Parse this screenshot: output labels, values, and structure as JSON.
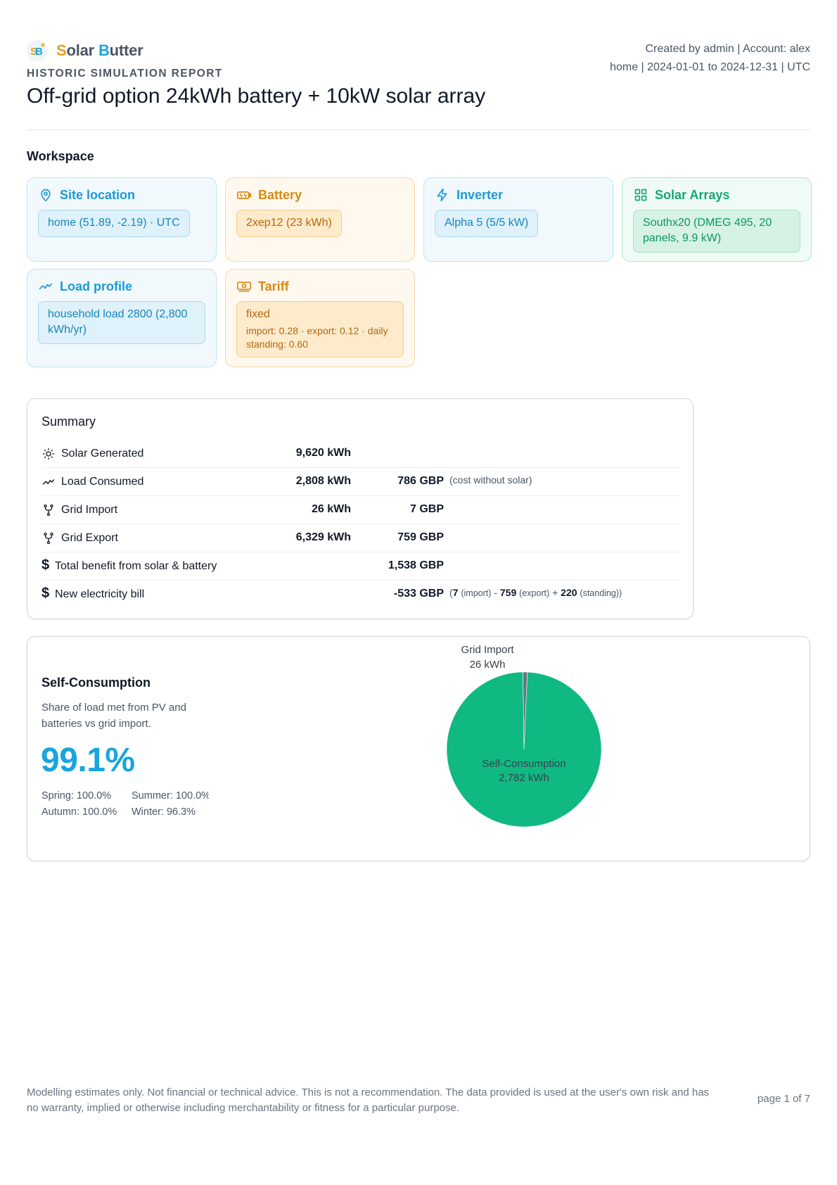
{
  "brand": {
    "first_letter": "S",
    "first_rest": "olar ",
    "second_letter": "B",
    "second_rest": "utter"
  },
  "header": {
    "kicker": "HISTORIC SIMULATION REPORT",
    "title": "Off-grid option 24kWh battery + 10kW solar array",
    "meta_line1": "Created by admin | Account: alex",
    "meta_line2": "home | 2024-01-01 to 2024-12-31 | UTC"
  },
  "workspace": {
    "title": "Workspace",
    "cards": [
      {
        "key": "site",
        "title": "Site location",
        "icon": "map-pin-icon",
        "value": "home (51.89, -2.19) · UTC"
      },
      {
        "key": "battery",
        "title": "Battery",
        "icon": "battery-icon",
        "value": "2xep12 (23 kWh)"
      },
      {
        "key": "inverter",
        "title": "Inverter",
        "icon": "lightning-icon",
        "value": "Alpha 5 (5/5 kW)"
      },
      {
        "key": "arrays",
        "title": "Solar Arrays",
        "icon": "grid-icon",
        "value": "Southx20 (DMEG 495, 20 panels, 9.9 kW)"
      },
      {
        "key": "load",
        "title": "Load profile",
        "icon": "trend-icon",
        "value": "household load 2800 (2,800 kWh/yr)"
      },
      {
        "key": "tariff",
        "title": "Tariff",
        "icon": "banknote-icon",
        "value": "fixed",
        "detail": "import: 0.28 · export: 0.12 · daily standing: 0.60"
      }
    ]
  },
  "summary": {
    "title": "Summary",
    "rows": [
      {
        "icon": "sun-icon",
        "label": "Solar Generated",
        "energy": "9,620 kWh",
        "cost": "",
        "note": ""
      },
      {
        "icon": "trend-icon",
        "label": "Load Consumed",
        "energy": "2,808 kWh",
        "cost": "786 GBP",
        "note": "(cost without solar)"
      },
      {
        "icon": "fork-icon",
        "label": "Grid Import",
        "energy": "26 kWh",
        "cost": "7 GBP",
        "note": ""
      },
      {
        "icon": "fork-icon",
        "label": "Grid Export",
        "energy": "6,329 kWh",
        "cost": "759 GBP",
        "note": ""
      },
      {
        "icon": "dollar-icon",
        "label": "Total benefit from solar & battery",
        "energy": "",
        "cost": "1,538 GBP",
        "note": ""
      },
      {
        "icon": "dollar-icon",
        "label": "New electricity bill",
        "energy": "",
        "cost": "-533 GBP"
      }
    ],
    "bill_breakdown": {
      "open": "(",
      "import_value": "7",
      "import_label": "(import)",
      "minus": "-",
      "export_value": "759",
      "export_label": "(export)",
      "plus": "+",
      "standing_value": "220",
      "standing_label": "(standing))"
    }
  },
  "self_consumption": {
    "title": "Self-Consumption",
    "description": "Share of load met from PV and batteries vs grid import.",
    "percent": "99.1%",
    "seasons": {
      "spring": "Spring: 100.0%",
      "summer": "Summer: 100.0%",
      "autumn": "Autumn: 100.0%",
      "winter": "Winter: 96.3%"
    }
  },
  "chart_data": {
    "type": "pie",
    "title": "",
    "slices": [
      {
        "label": "Self-Consumption",
        "value": 2782,
        "value_label": "2,782 kWh",
        "color": "#10b981"
      },
      {
        "label": "Grid Import",
        "value": 26,
        "value_label": "26 kWh",
        "color": "#6b7280"
      }
    ]
  },
  "footer": {
    "disclaimer": "Modelling estimates only. Not financial or technical advice. This is not a recommendation. The data provided is used at the user's own risk and has no warranty, implied or otherwise including merchantability or fitness for a particular purpose.",
    "page": "page 1 of 7"
  },
  "colors": {
    "brand_orange": "#e6a01e",
    "brand_blue": "#1aa3e0",
    "accent_blue": "#18a5e0",
    "accent_green": "#10b981",
    "accent_orange": "#d98a12"
  }
}
